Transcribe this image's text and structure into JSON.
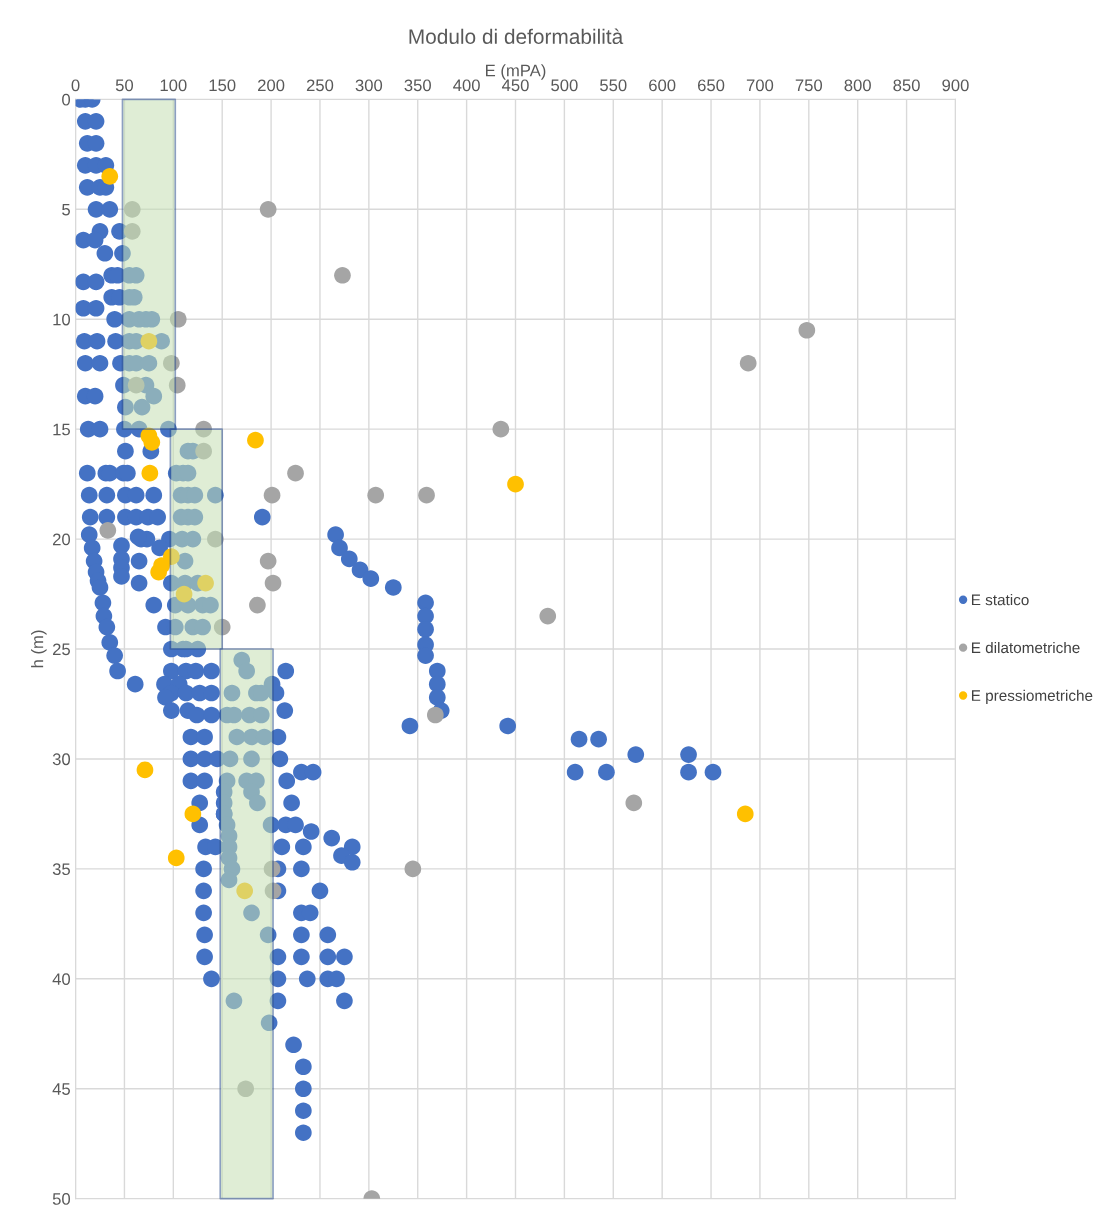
{
  "chart_data": {
    "type": "scatter",
    "title": "Modulo di deformabilità",
    "xlabel": "E (mPA)",
    "ylabel": "h (m)",
    "xlim": [
      0,
      900
    ],
    "xticks": [
      0,
      50,
      100,
      150,
      200,
      250,
      300,
      350,
      400,
      450,
      500,
      550,
      600,
      650,
      700,
      750,
      800,
      850,
      900
    ],
    "ylim": [
      50,
      0
    ],
    "yticks": [
      0,
      5,
      10,
      15,
      20,
      25,
      30,
      35,
      40,
      45,
      50
    ],
    "grid": true,
    "legend": "right",
    "series": [
      {
        "type": "area",
        "color": "#c5e0b4",
        "x": [
          48,
          102,
          102,
          48,
          48
        ],
        "values": [
          0,
          0,
          15,
          15,
          0
        ]
      },
      {
        "type": "area",
        "color": "#c5e0b4",
        "x": [
          97,
          150,
          150,
          97,
          97
        ],
        "values": [
          15,
          15,
          25,
          25,
          15
        ]
      },
      {
        "type": "area",
        "color": "#c5e0b4",
        "x": [
          148,
          202,
          202,
          148,
          148
        ],
        "values": [
          25,
          25,
          50,
          50,
          25
        ]
      },
      {
        "name": "E statico",
        "color": "#4472c4",
        "marker": "circle",
        "x": [
          5,
          10,
          17,
          10,
          21,
          12,
          21,
          10,
          21,
          31,
          12,
          25,
          31,
          21,
          35,
          25,
          45,
          8,
          20,
          30,
          48,
          37,
          43,
          8,
          21,
          37,
          45,
          8,
          21,
          40,
          9,
          22,
          41,
          10,
          25,
          46,
          49,
          10,
          20,
          51,
          13,
          25,
          50,
          51,
          77,
          12,
          31,
          35,
          49,
          53,
          103,
          14,
          32,
          51,
          62,
          80,
          143,
          15,
          32,
          51,
          62,
          74,
          84,
          191,
          14,
          67,
          73,
          96,
          109,
          17,
          19,
          21,
          23,
          25,
          28,
          29,
          32,
          35,
          40,
          43,
          47,
          47,
          47,
          47,
          65,
          65,
          80,
          64,
          86,
          98,
          102,
          92,
          102,
          98,
          110,
          125,
          61,
          98,
          113,
          123,
          139,
          215,
          91,
          106,
          201,
          98,
          113,
          127,
          139,
          205,
          92,
          98,
          115,
          214,
          124,
          139,
          342,
          442,
          118,
          132,
          207,
          515,
          535,
          573,
          627,
          118,
          132,
          145,
          209,
          511,
          543,
          627,
          652,
          231,
          243,
          118,
          132,
          216,
          127,
          221,
          152,
          127,
          215,
          225,
          241,
          262,
          133,
          143,
          211,
          233,
          283,
          272,
          283,
          131,
          207,
          231,
          131,
          207,
          250,
          131,
          231,
          240,
          132,
          197,
          231,
          258,
          132,
          207,
          231,
          258,
          275,
          139,
          207,
          237,
          258,
          267,
          207,
          275,
          223,
          233,
          233,
          233,
          233,
          266,
          270,
          280,
          291,
          302,
          325,
          358,
          358,
          358,
          358,
          358,
          370,
          370,
          370,
          374,
          55,
          62,
          55,
          60,
          55,
          65,
          72,
          78,
          55,
          62,
          88,
          55,
          62,
          75,
          72,
          80,
          68,
          65,
          95,
          115,
          120,
          110,
          115,
          108,
          115,
          122,
          108,
          115,
          122,
          120,
          112,
          112,
          125,
          115,
          130,
          138,
          120,
          130,
          113,
          170,
          175,
          160,
          185,
          190,
          155,
          162,
          178,
          190,
          165,
          180,
          193,
          158,
          180,
          155,
          175,
          185,
          152,
          180,
          152,
          186,
          152,
          155,
          200,
          157,
          157,
          157,
          160,
          157,
          180,
          162,
          198
        ],
        "values": [
          0,
          0,
          0,
          1,
          1,
          2,
          2,
          3,
          3,
          3,
          4,
          4,
          4,
          5,
          5,
          6,
          6,
          6.4,
          6.4,
          7,
          7,
          8,
          8,
          8.3,
          8.3,
          9,
          9,
          9.5,
          9.5,
          10,
          11,
          11,
          11,
          12,
          12,
          12,
          13,
          13.5,
          13.5,
          14,
          15,
          15,
          15,
          16,
          16,
          17,
          17,
          17,
          17,
          17,
          17,
          18,
          18,
          18,
          18,
          18,
          18,
          19,
          19,
          19,
          19,
          19,
          19,
          19,
          19.8,
          20,
          20,
          20,
          20,
          20.4,
          21,
          21.5,
          21.9,
          22.2,
          22.9,
          23.5,
          24,
          24.7,
          25.3,
          26,
          20.3,
          20.9,
          21.3,
          21.7,
          21,
          22,
          23,
          19.9,
          20.4,
          22,
          23,
          24,
          24,
          25,
          25,
          25,
          26.6,
          26,
          26,
          26,
          26,
          26,
          26.6,
          26.6,
          26.6,
          27,
          27,
          27,
          27,
          27,
          27.2,
          27.8,
          27.8,
          27.8,
          28,
          28,
          28.5,
          28.5,
          29,
          29,
          29,
          29.1,
          29.1,
          29.8,
          29.8,
          30,
          30,
          30,
          30,
          30.6,
          30.6,
          30.6,
          30.6,
          30.6,
          30.6,
          31,
          31,
          31,
          32,
          32,
          32.5,
          33,
          33,
          33,
          33.3,
          33.6,
          34,
          34,
          34,
          34,
          34,
          34.4,
          34.7,
          35,
          35,
          35,
          36,
          36,
          36,
          37,
          37,
          37,
          38,
          38,
          38,
          38,
          39,
          39,
          39,
          39,
          39,
          40,
          40,
          40,
          40,
          40,
          41,
          41,
          43,
          44,
          45,
          46,
          47,
          19.8,
          20.4,
          20.9,
          21.4,
          21.8,
          22.2,
          22.9,
          23.5,
          24.1,
          24.8,
          25.3,
          26,
          26.6,
          27.2,
          27.8,
          8,
          8,
          9,
          9,
          10,
          10,
          10,
          10,
          11,
          11,
          11,
          12,
          12,
          12,
          13,
          13.5,
          14,
          15,
          15,
          16,
          16,
          17,
          17,
          18,
          18,
          18,
          19,
          19,
          19,
          20,
          21,
          22,
          22,
          23,
          23,
          23,
          24,
          24,
          25,
          25.5,
          26,
          27,
          27,
          27,
          28,
          28,
          28,
          28,
          29,
          29,
          29,
          30,
          30,
          31,
          31,
          31,
          31.5,
          31.5,
          32,
          32,
          32.5,
          33,
          33,
          33.5,
          34,
          34.5,
          35,
          35.5,
          37,
          41,
          42
        ]
      },
      {
        "name": "E dilatometriche",
        "color": "#a5a5a5",
        "marker": "circle",
        "x": [
          58,
          58,
          197,
          273,
          105,
          748,
          688,
          98,
          104,
          62,
          131,
          435,
          131,
          225,
          201,
          307,
          359,
          33,
          143,
          197,
          202,
          186,
          483,
          150,
          368,
          571,
          345,
          201,
          202,
          174,
          303
        ],
        "values": [
          5,
          6,
          5,
          8,
          10,
          10.5,
          12,
          12,
          13,
          13,
          15,
          15,
          16,
          17,
          18,
          18,
          18,
          19.6,
          20,
          21,
          22,
          23,
          23.5,
          24,
          28,
          32,
          35,
          35,
          36,
          45,
          50
        ]
      },
      {
        "name": "E pressiometriche",
        "color": "#ffc000",
        "marker": "circle",
        "x": [
          35,
          75,
          75,
          78,
          184,
          76,
          450,
          98,
          88,
          85,
          133,
          111,
          71,
          120,
          103,
          173,
          685
        ],
        "values": [
          3.5,
          11,
          15.3,
          15.6,
          15.5,
          17,
          17.5,
          20.8,
          21.2,
          21.5,
          22,
          22.5,
          30.5,
          32.5,
          34.5,
          36,
          32.5
        ]
      }
    ]
  }
}
